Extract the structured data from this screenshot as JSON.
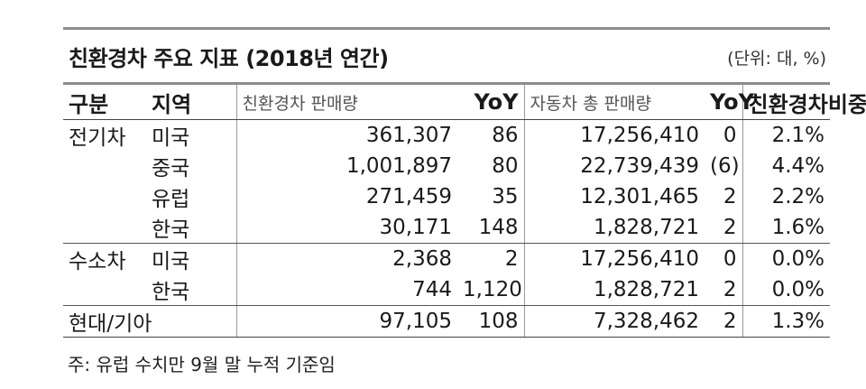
{
  "title": "친환경차 주요 지표 (2018년 연간)",
  "unit": "(단위: 대, %)",
  "headers": [
    "구분",
    "지역",
    "친환경차 판매량",
    "YoY",
    "자동차 총 판매량",
    "YoY",
    "친환경차비중"
  ],
  "rows": [
    {
      "category": "전기차",
      "region": "미국",
      "eco_sales": "361,307",
      "eco_yoy": "86",
      "total_sales": "17,256,410",
      "total_yoy": "0",
      "share": "2.1%"
    },
    {
      "category": "",
      "region": "중국",
      "eco_sales": "1,001,897",
      "eco_yoy": "80",
      "total_sales": "22,739,439",
      "total_yoy": "(6)",
      "share": "4.4%"
    },
    {
      "category": "",
      "region": "유럽",
      "eco_sales": "271,459",
      "eco_yoy": "35",
      "total_sales": "12,301,465",
      "total_yoy": "2",
      "share": "2.2%"
    },
    {
      "category": "",
      "region": "한국",
      "eco_sales": "30,171",
      "eco_yoy": "148",
      "total_sales": "1,828,721",
      "total_yoy": "2",
      "share": "1.6%"
    },
    {
      "category": "수소차",
      "region": "미국",
      "eco_sales": "2,368",
      "eco_yoy": "2",
      "total_sales": "17,256,410",
      "total_yoy": "0",
      "share": "0.0%"
    },
    {
      "category": "",
      "region": "한국",
      "eco_sales": "744",
      "eco_yoy": "1,120",
      "total_sales": "1,828,721",
      "total_yoy": "2",
      "share": "0.0%"
    },
    {
      "category": "현대/기아",
      "region": "",
      "eco_sales": "97,105",
      "eco_yoy": "108",
      "total_sales": "7,328,462",
      "total_yoy": "2",
      "share": "1.3%"
    }
  ],
  "note": "주: 유럽 수치만 9월 말 누적 기준임"
}
